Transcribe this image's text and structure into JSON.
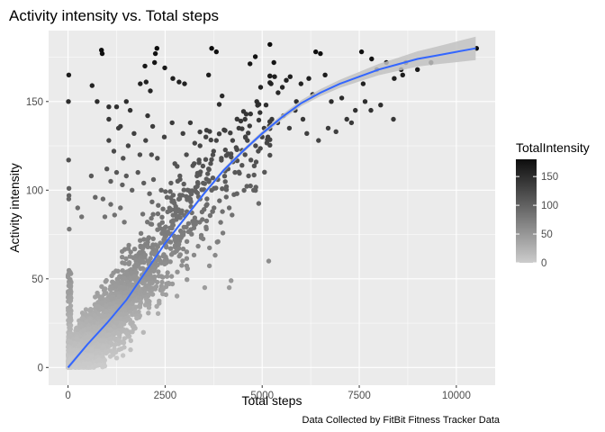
{
  "chart_data": {
    "type": "scatter",
    "title": "Activity intensity vs. Total steps",
    "xlabel": "Total steps",
    "ylabel": "Activity intensity",
    "caption": "Data Collected by FitBit Fitness Tracker Data",
    "xlim": [
      -500,
      11000
    ],
    "ylim": [
      -10,
      190
    ],
    "x_ticks": [
      0,
      2500,
      5000,
      7500,
      10000
    ],
    "x_tick_labels": [
      "0",
      "2500",
      "5000",
      "7500",
      "10000"
    ],
    "y_ticks": [
      0,
      50,
      100,
      150
    ],
    "y_tick_labels": [
      "0",
      "50",
      "100",
      "150"
    ],
    "grid": true,
    "legend": {
      "title": "TotalIntensity",
      "placement": "right",
      "ticks": [
        0,
        50,
        100,
        150
      ],
      "tick_labels": [
        "0",
        "50",
        "100",
        "150"
      ],
      "range": [
        0,
        180
      ],
      "low_color": "#cccccc",
      "high_color": "#0d0d0d"
    },
    "colors": {
      "panel": "#ebebeb",
      "grid": "#ffffff",
      "smooth_line": "#3366ff",
      "smooth_band": "#c2c2c2"
    },
    "smooth": {
      "x": [
        0,
        500,
        1000,
        1500,
        2000,
        2500,
        3000,
        3500,
        4000,
        4500,
        5000,
        5500,
        6000,
        6500,
        7000,
        7500,
        8000,
        8500,
        9000,
        9500,
        10000,
        10500
      ],
      "y": [
        0,
        13,
        25,
        38,
        54,
        70,
        84,
        98,
        111,
        122,
        132,
        141,
        149,
        155,
        160,
        164,
        168,
        171,
        174,
        176,
        178,
        180
      ],
      "band_halfwidth": [
        1.6,
        1.0,
        0.8,
        0.8,
        0.8,
        0.8,
        0.9,
        1.0,
        1.1,
        1.2,
        1.3,
        1.5,
        1.7,
        2.0,
        2.3,
        2.7,
        3.2,
        3.7,
        4.3,
        5.0,
        5.8,
        6.6
      ]
    },
    "points": [
      [
        10520,
        180
      ],
      [
        9350,
        172
      ],
      [
        9000,
        168
      ],
      [
        8700,
        172
      ],
      [
        8620,
        165
      ],
      [
        8580,
        168
      ],
      [
        8400,
        163
      ],
      [
        8380,
        140
      ],
      [
        8200,
        172
      ],
      [
        7950,
        168
      ],
      [
        7820,
        174
      ],
      [
        7650,
        150
      ],
      [
        7600,
        160
      ],
      [
        7560,
        178
      ],
      [
        7400,
        145
      ],
      [
        7180,
        140
      ],
      [
        7050,
        152
      ],
      [
        6780,
        150
      ],
      [
        6620,
        165
      ],
      [
        6500,
        177
      ],
      [
        6380,
        178
      ],
      [
        6300,
        154
      ],
      [
        6200,
        163
      ],
      [
        6000,
        160
      ],
      [
        5880,
        150
      ],
      [
        5720,
        164
      ],
      [
        5620,
        162
      ],
      [
        5520,
        158
      ],
      [
        5410,
        155
      ],
      [
        5320,
        164
      ],
      [
        5300,
        172
      ],
      [
        5230,
        160
      ],
      [
        5100,
        148
      ],
      [
        4960,
        158
      ],
      [
        4860,
        150
      ],
      [
        4700,
        143
      ],
      [
        4560,
        140
      ],
      [
        4450,
        139
      ],
      [
        3820,
        178
      ],
      [
        3700,
        180
      ],
      [
        3620,
        165
      ],
      [
        3000,
        160
      ],
      [
        2860,
        161
      ],
      [
        2700,
        163
      ],
      [
        2490,
        169
      ],
      [
        2290,
        180
      ],
      [
        2250,
        177
      ],
      [
        2230,
        172
      ],
      [
        2120,
        156
      ],
      [
        2010,
        161
      ],
      [
        1860,
        160
      ],
      [
        880,
        177
      ],
      [
        860,
        179
      ],
      [
        620,
        159
      ],
      [
        750,
        150
      ],
      [
        1050,
        140
      ],
      [
        3520,
        45
      ],
      [
        4200,
        49
      ],
      [
        4150,
        45
      ],
      [
        5170,
        60
      ],
      [
        20,
        165
      ],
      [
        10,
        150
      ],
      [
        15,
        117
      ],
      [
        25,
        101
      ],
      [
        25,
        97
      ],
      [
        30,
        78
      ],
      [
        20,
        95
      ]
    ],
    "band_points": [
      [
        2960,
        132
      ],
      [
        3150,
        138
      ],
      [
        3400,
        125
      ],
      [
        3550,
        130
      ],
      [
        3750,
        122
      ],
      [
        3820,
        128
      ],
      [
        3950,
        118
      ],
      [
        4020,
        134
      ],
      [
        4120,
        112
      ],
      [
        4240,
        128
      ],
      [
        4330,
        124
      ],
      [
        4400,
        135
      ],
      [
        4560,
        120
      ],
      [
        4620,
        128
      ],
      [
        4710,
        117
      ],
      [
        4830,
        125
      ],
      [
        3250,
        115
      ],
      [
        3320,
        108
      ],
      [
        3480,
        104
      ],
      [
        3620,
        112
      ],
      [
        3700,
        100
      ],
      [
        3860,
        106
      ],
      [
        4080,
        102
      ],
      [
        4300,
        110
      ],
      [
        4480,
        114
      ],
      [
        4650,
        108
      ],
      [
        4780,
        100
      ],
      [
        2750,
        115
      ],
      [
        2880,
        108
      ],
      [
        3050,
        120
      ],
      [
        3150,
        95
      ],
      [
        3400,
        95
      ],
      [
        3580,
        92
      ],
      [
        3720,
        88
      ],
      [
        3900,
        94
      ],
      [
        4150,
        90
      ],
      [
        4350,
        98
      ],
      [
        1050,
        128
      ],
      [
        1180,
        122
      ],
      [
        1300,
        135
      ],
      [
        1420,
        118
      ],
      [
        1550,
        125
      ],
      [
        1700,
        132
      ],
      [
        1850,
        120
      ],
      [
        2000,
        128
      ],
      [
        2150,
        120
      ],
      [
        2300,
        118
      ],
      [
        1000,
        112
      ],
      [
        1100,
        105
      ],
      [
        1250,
        110
      ],
      [
        1400,
        103
      ],
      [
        1500,
        108
      ],
      [
        1650,
        100
      ],
      [
        1800,
        110
      ],
      [
        1950,
        104
      ],
      [
        2100,
        98
      ],
      [
        2200,
        106
      ],
      [
        2400,
        100
      ],
      [
        2550,
        96
      ],
      [
        2650,
        104
      ],
      [
        900,
        95
      ],
      [
        950,
        85
      ],
      [
        1100,
        92
      ],
      [
        1200,
        86
      ],
      [
        1350,
        90
      ],
      [
        1450,
        82
      ],
      [
        600,
        108
      ],
      [
        700,
        96
      ],
      [
        350,
        85
      ],
      [
        250,
        90
      ],
      [
        1050,
        147
      ],
      [
        1250,
        147
      ],
      [
        1350,
        136
      ],
      [
        2050,
        142
      ],
      [
        2180,
        136
      ],
      [
        2680,
        138
      ],
      [
        2480,
        130
      ],
      [
        1600,
        145
      ],
      [
        1980,
        170
      ],
      [
        1500,
        150
      ],
      [
        5050,
        135
      ],
      [
        5250,
        140
      ],
      [
        5400,
        138
      ],
      [
        5550,
        142
      ],
      [
        5700,
        135
      ],
      [
        5850,
        145
      ],
      [
        6050,
        140
      ],
      [
        6150,
        132
      ],
      [
        6450,
        128
      ],
      [
        6700,
        135
      ],
      [
        6900,
        133
      ],
      [
        7300,
        138
      ],
      [
        7800,
        145
      ],
      [
        8050,
        148
      ],
      [
        5000,
        130
      ],
      [
        4900,
        122
      ]
    ]
  }
}
